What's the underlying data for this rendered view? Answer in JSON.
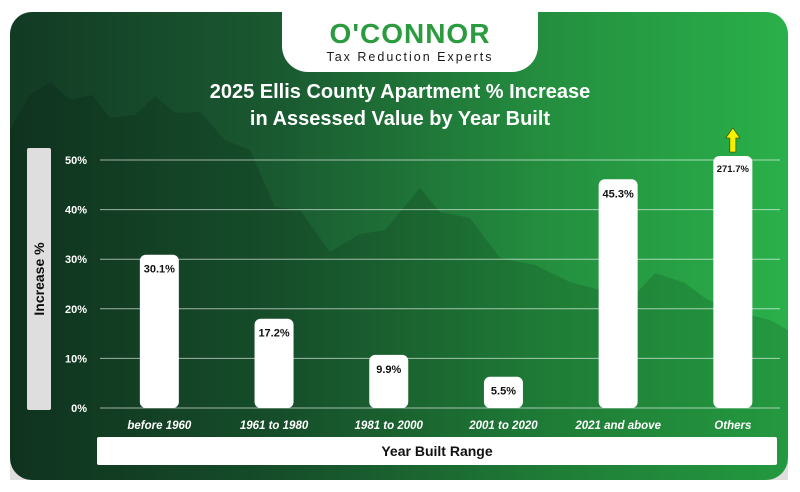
{
  "logo": {
    "name": "O'CONNOR",
    "tagline": "Tax Reduction Experts"
  },
  "colors": {
    "brand_green": "#2a9b3f",
    "bar": "#ffffff",
    "arrow": "#f4f000"
  },
  "chart_data": {
    "type": "bar",
    "title_line1": "2025 Ellis County Apartment % Increase",
    "title_line2": "in Assessed Value by Year Built",
    "xlabel": "Year Built Range",
    "ylabel": "Increase %",
    "categories": [
      "before 1960",
      "1961 to 1980",
      "1981 to 2000",
      "2001 to 2020",
      "2021 and above",
      "Others"
    ],
    "values": [
      30.1,
      17.2,
      9.9,
      5.5,
      45.3,
      271.7
    ],
    "data_labels": [
      "30.1%",
      "17.2%",
      "9.9%",
      "5.5%",
      "45.3%",
      "271.7%"
    ],
    "ylim": [
      0,
      50
    ],
    "yticks": [
      0,
      10,
      20,
      30,
      40,
      50
    ],
    "ytick_labels": [
      "0%",
      "10%",
      "20%",
      "30%",
      "40%",
      "50%"
    ],
    "grid": true,
    "overflow_indicator": "up-arrow on Others bar"
  }
}
